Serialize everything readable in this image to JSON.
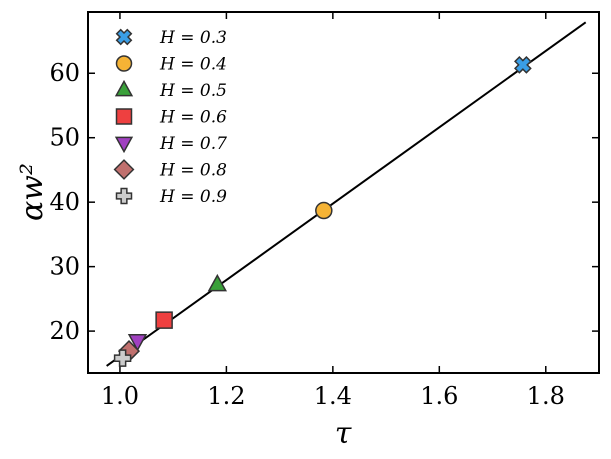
{
  "chart_data": {
    "type": "scatter",
    "xlabel": "τ",
    "ylabel": "αw²",
    "xlim": [
      0.94,
      1.9
    ],
    "ylim": [
      13.5,
      69.5
    ],
    "xticks": [
      "1.0",
      "1.2",
      "1.4",
      "1.6",
      "1.8"
    ],
    "yticks": [
      "20",
      "30",
      "40",
      "50",
      "60"
    ],
    "legend_position": "top-left",
    "grid": false,
    "series": [
      {
        "name": "H = 0.3",
        "marker": "x-filled",
        "color": "#3a9ee6",
        "x": [
          1.757
        ],
        "y": [
          61.3
        ]
      },
      {
        "name": "H = 0.4",
        "marker": "circle",
        "color": "#f5b335",
        "x": [
          1.383
        ],
        "y": [
          38.7
        ]
      },
      {
        "name": "H = 0.5",
        "marker": "triangle-up",
        "color": "#3aa03a",
        "x": [
          1.183
        ],
        "y": [
          27.2
        ]
      },
      {
        "name": "H = 0.6",
        "marker": "square",
        "color": "#ee4040",
        "x": [
          1.083
        ],
        "y": [
          21.7
        ]
      },
      {
        "name": "H = 0.7",
        "marker": "triangle-down",
        "color": "#a040c0",
        "x": [
          1.033
        ],
        "y": [
          18.5
        ]
      },
      {
        "name": "H = 0.8",
        "marker": "diamond",
        "color": "#c0706e",
        "x": [
          1.017
        ],
        "y": [
          16.9
        ]
      },
      {
        "name": "H = 0.9",
        "marker": "plus-filled",
        "color": "#cccccc",
        "x": [
          1.005
        ],
        "y": [
          15.8
        ]
      }
    ],
    "fit_line": {
      "x": [
        0.975,
        1.875
      ],
      "y": [
        14.6,
        67.9
      ],
      "color": "#000000"
    }
  }
}
